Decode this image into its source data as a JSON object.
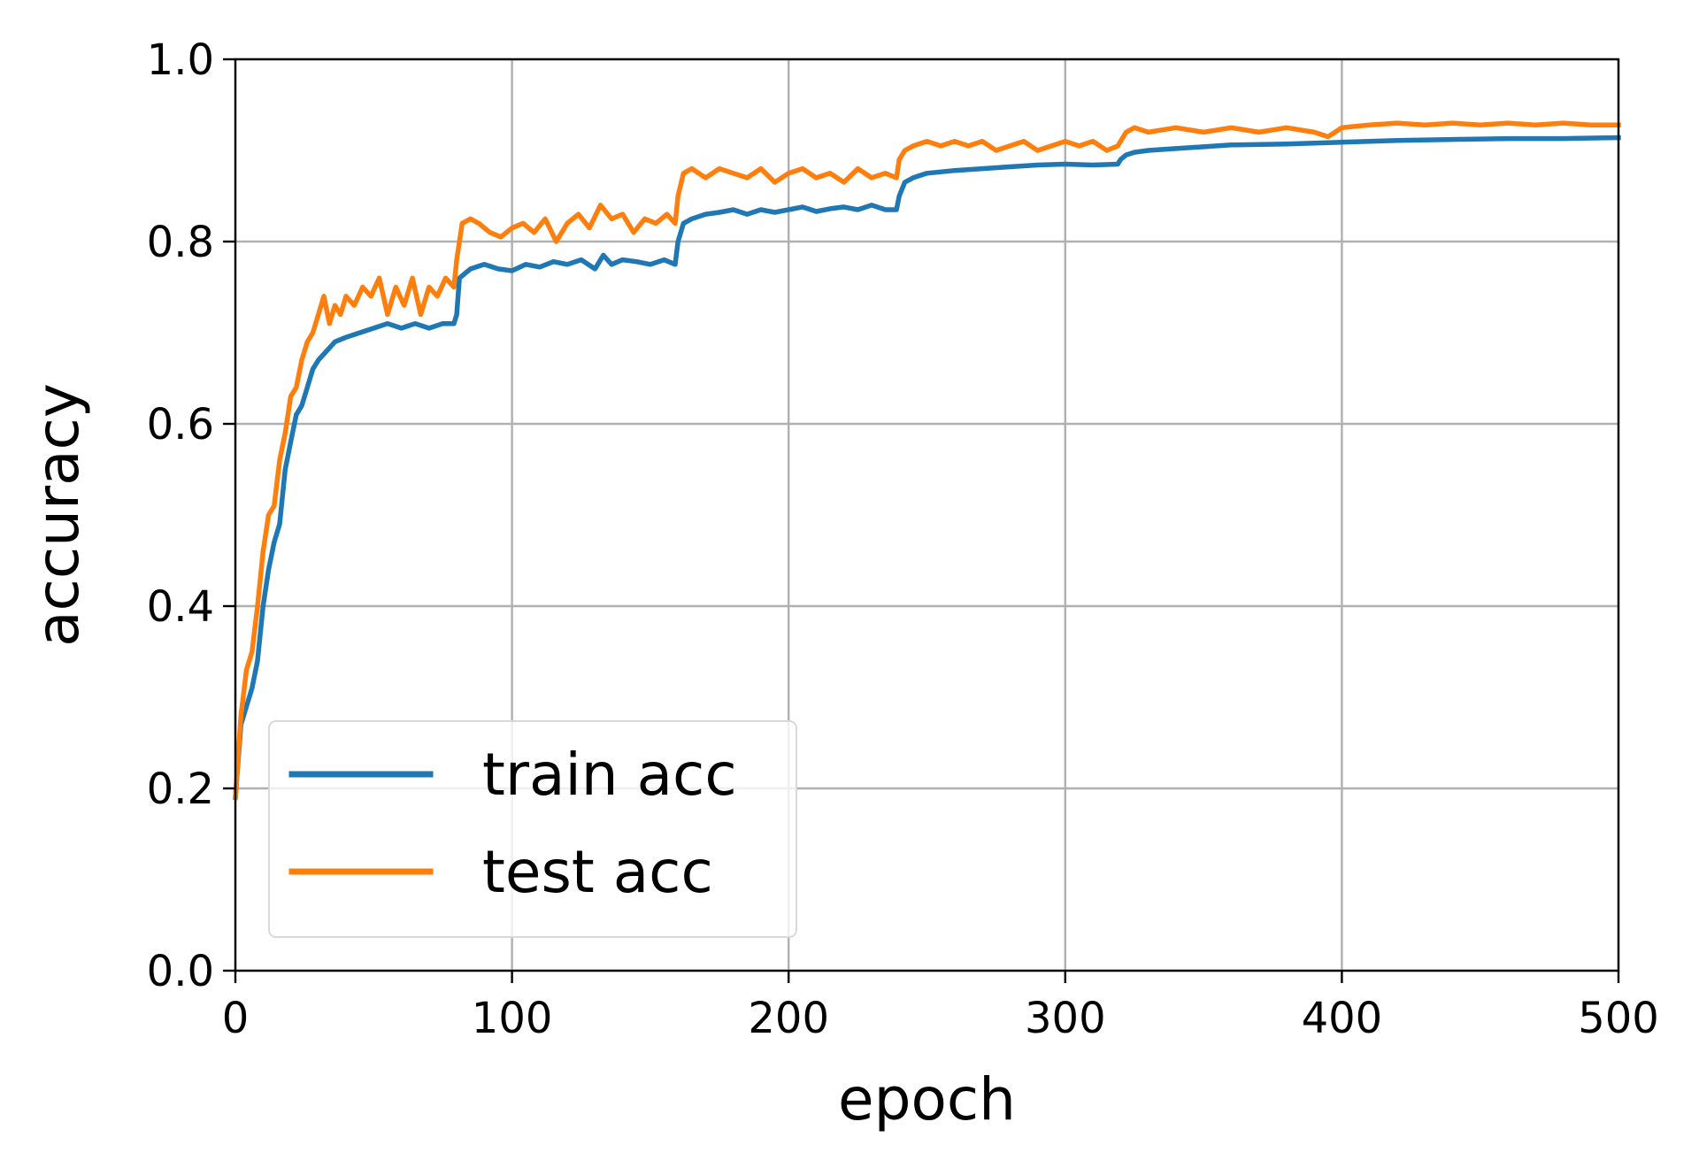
{
  "chart_data": {
    "type": "line",
    "title": "",
    "xlabel": "epoch",
    "ylabel": "accuracy",
    "xlim": [
      0,
      500
    ],
    "ylim": [
      0.0,
      1.0
    ],
    "xticks": [
      0,
      100,
      200,
      300,
      400,
      500
    ],
    "xtick_labels": [
      "0",
      "100",
      "200",
      "300",
      "400",
      "500"
    ],
    "yticks": [
      0.0,
      0.2,
      0.4,
      0.6,
      0.8,
      1.0
    ],
    "ytick_labels": [
      "0.0",
      "0.2",
      "0.4",
      "0.6",
      "0.8",
      "1.0"
    ],
    "grid": true,
    "legend": "lower-left",
    "series": [
      {
        "name": "train acc",
        "color": "#1f77b4",
        "x": [
          0,
          2,
          4,
          6,
          8,
          10,
          12,
          14,
          16,
          18,
          20,
          22,
          24,
          26,
          28,
          30,
          33,
          36,
          40,
          45,
          50,
          55,
          60,
          65,
          70,
          75,
          79,
          80,
          81,
          85,
          90,
          95,
          100,
          105,
          110,
          115,
          120,
          125,
          130,
          133,
          136,
          140,
          145,
          150,
          155,
          159,
          160,
          162,
          165,
          170,
          175,
          180,
          185,
          190,
          195,
          200,
          205,
          210,
          215,
          220,
          225,
          230,
          235,
          239,
          240,
          242,
          245,
          250,
          260,
          270,
          280,
          290,
          300,
          310,
          319,
          320,
          322,
          325,
          330,
          340,
          350,
          360,
          380,
          400,
          420,
          440,
          460,
          480,
          500
        ],
        "y": [
          0.19,
          0.27,
          0.29,
          0.31,
          0.34,
          0.4,
          0.44,
          0.47,
          0.49,
          0.55,
          0.58,
          0.61,
          0.62,
          0.64,
          0.66,
          0.67,
          0.68,
          0.69,
          0.695,
          0.7,
          0.705,
          0.71,
          0.705,
          0.71,
          0.705,
          0.71,
          0.71,
          0.72,
          0.76,
          0.77,
          0.775,
          0.77,
          0.768,
          0.775,
          0.772,
          0.778,
          0.775,
          0.78,
          0.77,
          0.785,
          0.775,
          0.78,
          0.778,
          0.775,
          0.78,
          0.775,
          0.8,
          0.82,
          0.825,
          0.83,
          0.832,
          0.835,
          0.83,
          0.835,
          0.832,
          0.835,
          0.838,
          0.833,
          0.836,
          0.838,
          0.835,
          0.84,
          0.835,
          0.835,
          0.85,
          0.865,
          0.87,
          0.875,
          0.878,
          0.88,
          0.882,
          0.884,
          0.885,
          0.884,
          0.885,
          0.89,
          0.895,
          0.898,
          0.9,
          0.902,
          0.904,
          0.906,
          0.907,
          0.909,
          0.911,
          0.912,
          0.913,
          0.913,
          0.914
        ]
      },
      {
        "name": "test acc",
        "color": "#ff7f0e",
        "x": [
          0,
          2,
          4,
          6,
          8,
          10,
          12,
          14,
          16,
          18,
          20,
          22,
          24,
          26,
          28,
          30,
          32,
          34,
          36,
          38,
          40,
          43,
          46,
          49,
          52,
          55,
          58,
          61,
          64,
          67,
          70,
          73,
          76,
          79,
          80,
          82,
          85,
          88,
          92,
          96,
          100,
          104,
          108,
          112,
          116,
          120,
          124,
          128,
          132,
          136,
          140,
          144,
          148,
          152,
          156,
          159,
          160,
          162,
          165,
          170,
          175,
          180,
          185,
          190,
          195,
          200,
          205,
          210,
          215,
          220,
          225,
          230,
          235,
          239,
          240,
          242,
          245,
          250,
          255,
          260,
          265,
          270,
          275,
          280,
          285,
          290,
          295,
          300,
          305,
          310,
          315,
          319,
          320,
          322,
          325,
          330,
          340,
          350,
          360,
          370,
          380,
          390,
          395,
          400,
          410,
          420,
          430,
          440,
          450,
          460,
          470,
          480,
          490,
          500
        ],
        "y": [
          0.19,
          0.28,
          0.33,
          0.35,
          0.4,
          0.46,
          0.5,
          0.51,
          0.56,
          0.59,
          0.63,
          0.64,
          0.67,
          0.69,
          0.7,
          0.72,
          0.74,
          0.71,
          0.73,
          0.72,
          0.74,
          0.73,
          0.75,
          0.74,
          0.76,
          0.72,
          0.75,
          0.73,
          0.76,
          0.72,
          0.75,
          0.74,
          0.76,
          0.75,
          0.78,
          0.82,
          0.825,
          0.82,
          0.81,
          0.805,
          0.815,
          0.82,
          0.81,
          0.825,
          0.8,
          0.82,
          0.83,
          0.815,
          0.84,
          0.825,
          0.83,
          0.81,
          0.825,
          0.82,
          0.83,
          0.82,
          0.85,
          0.875,
          0.88,
          0.87,
          0.88,
          0.875,
          0.87,
          0.88,
          0.865,
          0.875,
          0.88,
          0.87,
          0.875,
          0.865,
          0.88,
          0.87,
          0.875,
          0.87,
          0.89,
          0.9,
          0.905,
          0.91,
          0.905,
          0.91,
          0.905,
          0.91,
          0.9,
          0.905,
          0.91,
          0.9,
          0.905,
          0.91,
          0.905,
          0.91,
          0.9,
          0.905,
          0.91,
          0.92,
          0.925,
          0.92,
          0.925,
          0.92,
          0.925,
          0.92,
          0.925,
          0.92,
          0.915,
          0.925,
          0.928,
          0.93,
          0.928,
          0.93,
          0.928,
          0.93,
          0.928,
          0.93,
          0.928,
          0.928
        ]
      }
    ]
  }
}
